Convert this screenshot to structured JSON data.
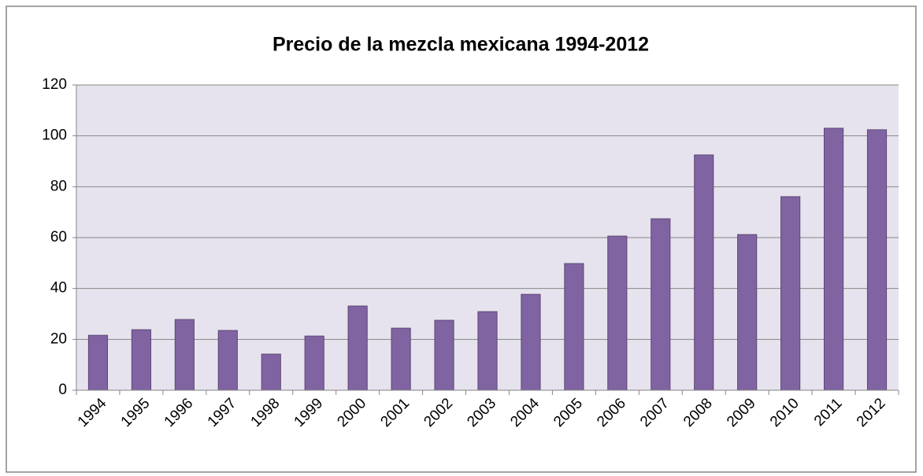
{
  "chart_data": {
    "type": "bar",
    "title": "Precio de la mezcla mexicana 1994-2012",
    "categories": [
      "1994",
      "1995",
      "1996",
      "1997",
      "1998",
      "1999",
      "2000",
      "2001",
      "2002",
      "2003",
      "2004",
      "2005",
      "2006",
      "2007",
      "2008",
      "2009",
      "2010",
      "2011",
      "2012"
    ],
    "values": [
      21.6,
      23.8,
      27.8,
      23.5,
      14.2,
      21.3,
      33.1,
      24.4,
      27.5,
      30.9,
      37.7,
      49.8,
      60.6,
      67.4,
      92.5,
      61.2,
      76.1,
      103,
      102.4
    ],
    "color": "#8064a2",
    "ylim": [
      0,
      120
    ],
    "yticks": [
      0,
      20,
      40,
      60,
      80,
      100,
      120
    ],
    "grid": true
  }
}
